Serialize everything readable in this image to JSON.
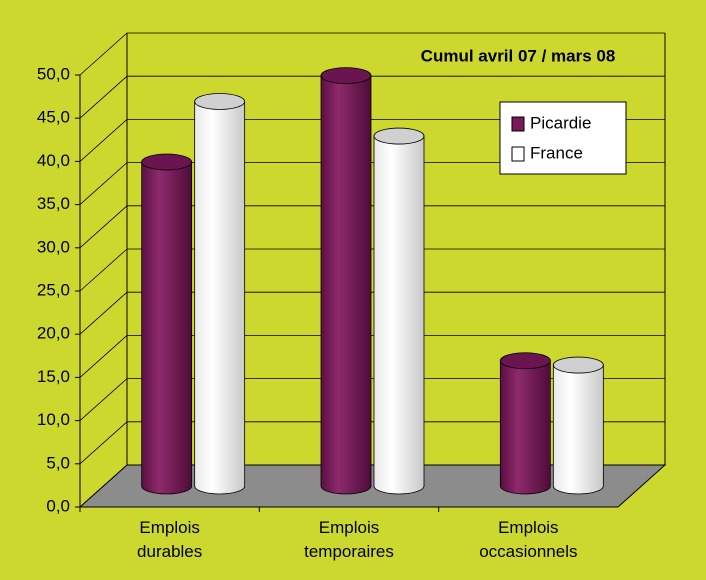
{
  "chart_data": {
    "type": "bar3d",
    "title": "Cumul avril 07 / mars 08",
    "categories": [
      "Emplois durables",
      "Emplois temporaires",
      "Emplois occasionnels"
    ],
    "series": [
      {
        "name": "Picardie",
        "color": "#7a1a5a",
        "values": [
          37.5,
          47.5,
          14.5
        ]
      },
      {
        "name": "France",
        "color": "#ffffff",
        "values": [
          44.5,
          40.5,
          14.0
        ]
      }
    ],
    "ylim": [
      0,
      50
    ],
    "yticks": [
      {
        "value": 0,
        "label": "0,0"
      },
      {
        "value": 5,
        "label": "5,0"
      },
      {
        "value": 10,
        "label": "10,0"
      },
      {
        "value": 15,
        "label": "15,0"
      },
      {
        "value": 20,
        "label": "20,0"
      },
      {
        "value": 25,
        "label": "25,0"
      },
      {
        "value": 30,
        "label": "30,0"
      },
      {
        "value": 35,
        "label": "35,0"
      },
      {
        "value": 40,
        "label": "40,0"
      },
      {
        "value": 45,
        "label": "45,0"
      },
      {
        "value": 50,
        "label": "50,0"
      }
    ],
    "grid": true,
    "legend": "upper right"
  }
}
